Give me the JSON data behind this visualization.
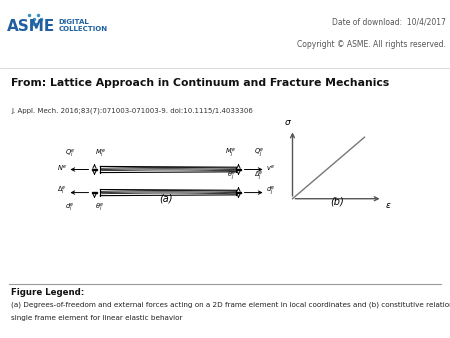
{
  "header_bg": "#f0eeec",
  "title_bg": "#ebebeb",
  "main_bg": "#ffffff",
  "header_date": "Date of download:  10/4/2017",
  "header_copyright": "Copyright © ASME. All rights reserved.",
  "title_text": "From: Lattice Approach in Continuum and Fracture Mechanics",
  "journal_ref": "J. Appl. Mech. 2016;83(7):071003-071003-9. doi:10.1115/1.4033306",
  "label_a": "(a)",
  "label_b": "(b)",
  "legend_title": "Figure Legend:",
  "legend_text": "(a) Degrees-of-freedom and external forces acting on a 2D frame element in local coordinates and (b) constitutive relation for a single frame element for linear elastic behavior",
  "fig_width": 4.5,
  "fig_height": 3.38,
  "dpi": 100
}
